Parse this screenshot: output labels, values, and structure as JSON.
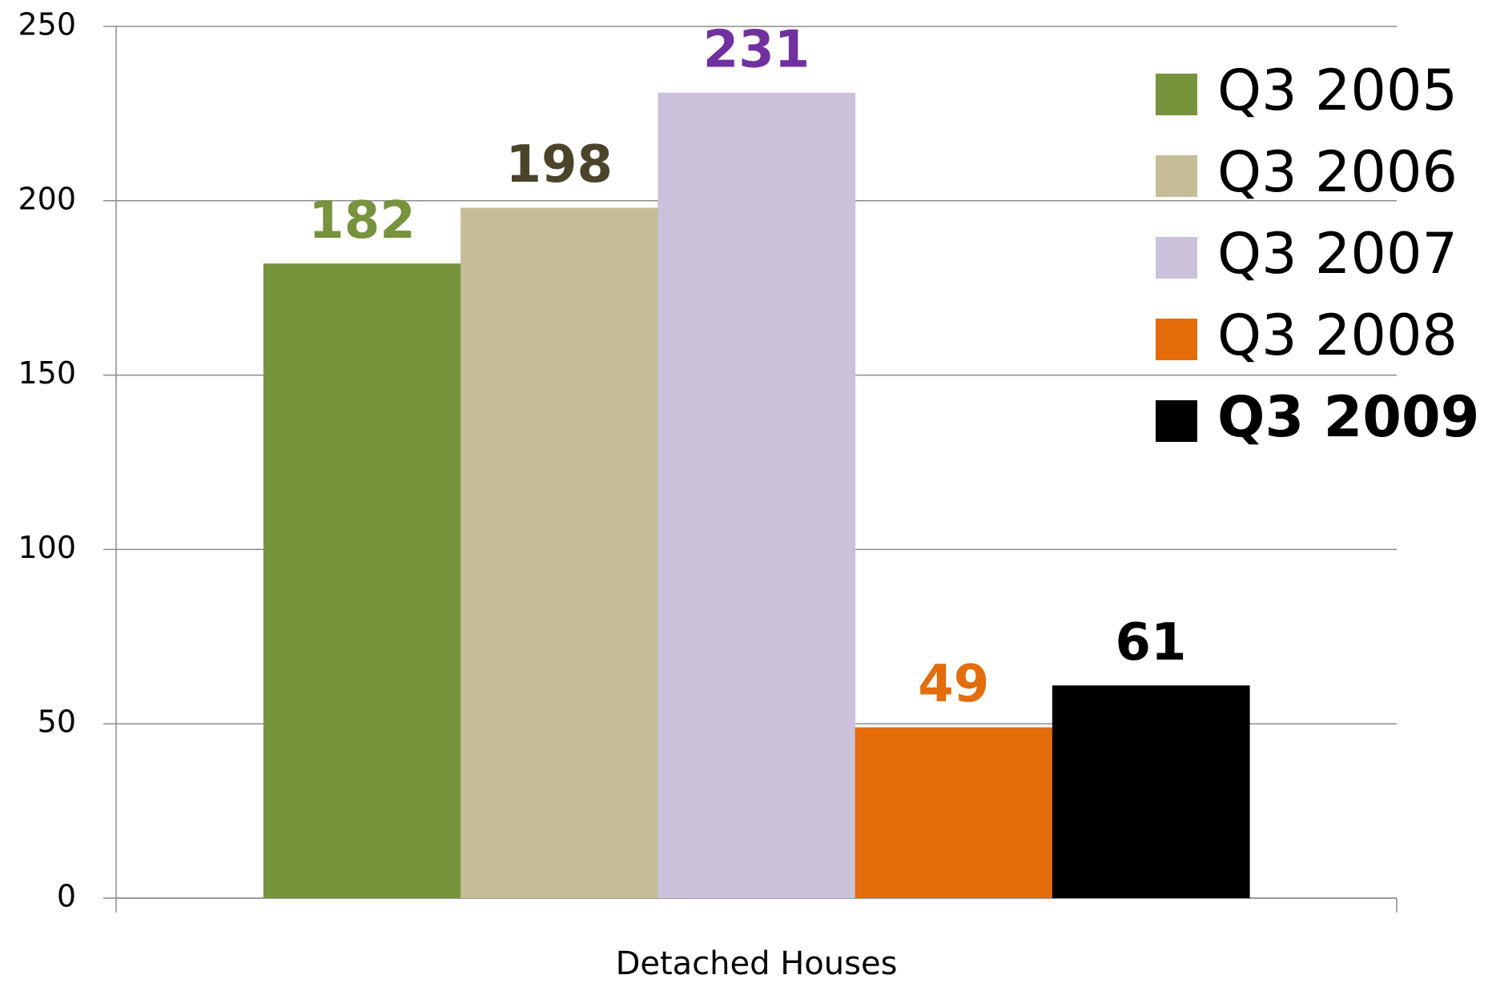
{
  "chart_data": {
    "type": "bar",
    "categories": [
      "Detached Houses"
    ],
    "series": [
      {
        "name": "Q3 2005",
        "color": "#77933c",
        "label_color": "#77933c",
        "values": [
          182
        ]
      },
      {
        "name": "Q3 2006",
        "color": "#c4bd97",
        "label_color": "#4a452a",
        "values": [
          198
        ]
      },
      {
        "name": "Q3 2007",
        "color": "#ccc1da",
        "label_color": "#7030a0",
        "values": [
          231
        ]
      },
      {
        "name": "Q3 2008",
        "color": "#e46c0a",
        "label_color": "#e46c0a",
        "values": [
          49
        ]
      },
      {
        "name": "Q3 2009",
        "color": "#000000",
        "label_color": "#000000",
        "values": [
          61
        ],
        "bold": true
      }
    ],
    "ylim": [
      0,
      250
    ],
    "yticks": [
      0,
      50,
      100,
      150,
      200,
      250
    ],
    "grid": true,
    "legend": "upper right"
  }
}
